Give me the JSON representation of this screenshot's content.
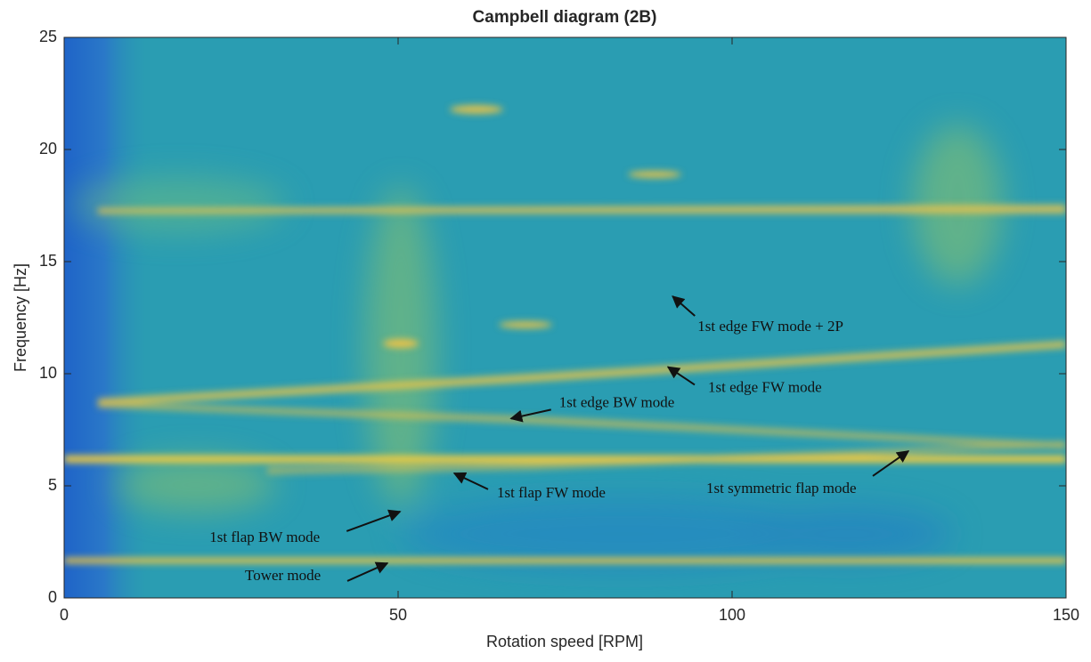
{
  "chart_data": {
    "type": "spectrogram",
    "title": "Campbell diagram (2B)",
    "x_label": "Rotation speed [RPM]",
    "y_label": "Frequency [Hz]",
    "xlim": [
      0,
      150
    ],
    "ylim": [
      0,
      25
    ],
    "xticks": [
      0,
      50,
      100,
      150
    ],
    "yticks": [
      0,
      5,
      10,
      15,
      20,
      25
    ],
    "annotations": [
      {
        "text": "1st edge FW mode + 2P",
        "x": 91.1,
        "y": 13.45
      },
      {
        "text": "1st edge FW mode",
        "x": 90.4,
        "y": 10.3
      },
      {
        "text": "1st edge BW mode",
        "x": 66.9,
        "y": 8.0
      },
      {
        "text": "1st flap FW mode",
        "x": 58.4,
        "y": 5.56
      },
      {
        "text": "1st symmetric flap mode",
        "x": 126.4,
        "y": 6.55
      },
      {
        "text": "1st flap BW mode",
        "x": 50.3,
        "y": 3.85
      },
      {
        "text": "Tower mode",
        "x": 48.4,
        "y": 1.55
      }
    ]
  }
}
